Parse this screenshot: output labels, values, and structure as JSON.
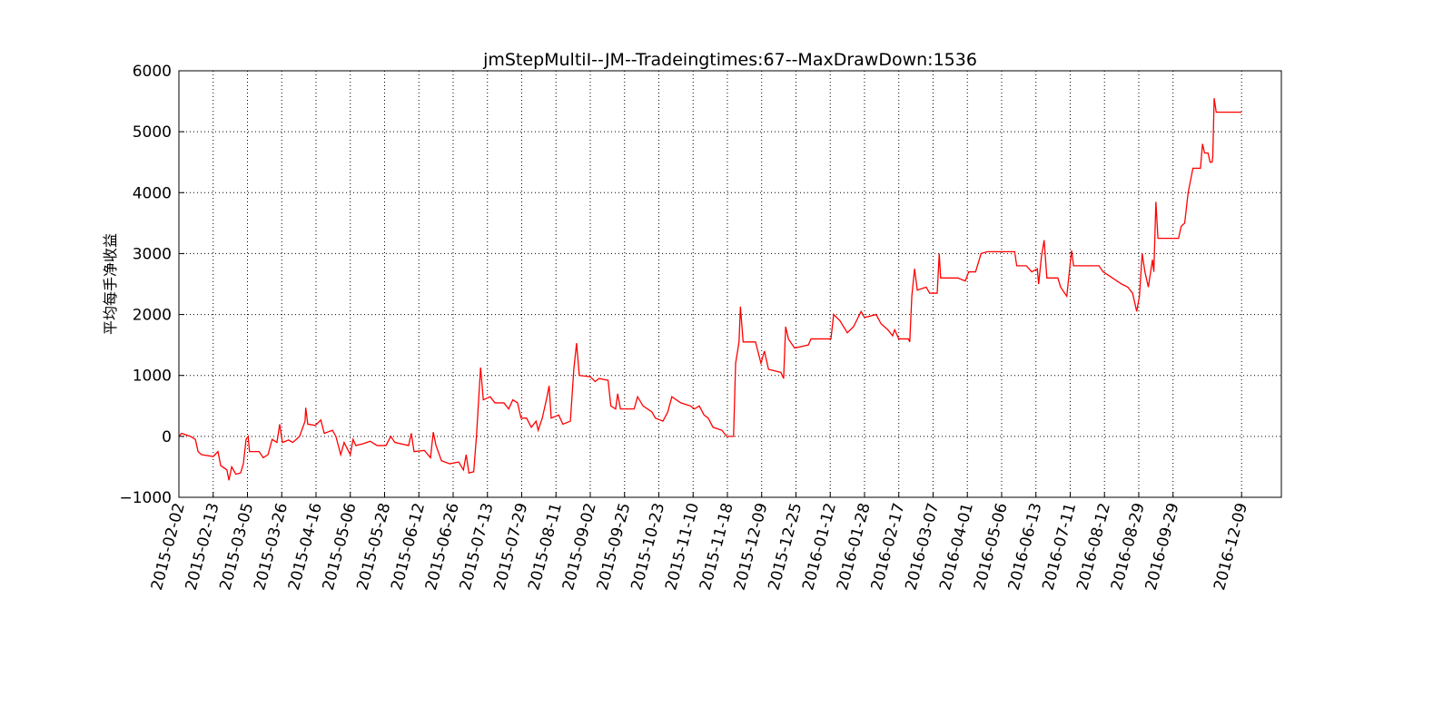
{
  "chart_data": {
    "type": "line",
    "title": "jmStepMultiI--JM--Tradeingtimes:67--MaxDrawDown:1536",
    "y_label": "平均每手净收益",
    "grid": true,
    "xlim": [
      0,
      1608
    ],
    "ylim": [
      -1000,
      6000
    ],
    "yticks": [
      {
        "value": -1000,
        "label": "−1000"
      },
      0,
      1000,
      2000,
      3000,
      4000,
      5000,
      6000
    ],
    "xticks": [
      {
        "value": 0,
        "label": "2015-02-02"
      },
      {
        "value": 50,
        "label": "2015-02-13"
      },
      {
        "value": 100,
        "label": "2015-03-05"
      },
      {
        "value": 150,
        "label": "2015-03-26"
      },
      {
        "value": 200,
        "label": "2015-04-16"
      },
      {
        "value": 250,
        "label": "2015-05-06"
      },
      {
        "value": 300,
        "label": "2015-05-28"
      },
      {
        "value": 350,
        "label": "2015-06-12"
      },
      {
        "value": 400,
        "label": "2015-06-26"
      },
      {
        "value": 450,
        "label": "2015-07-13"
      },
      {
        "value": 500,
        "label": "2015-07-29"
      },
      {
        "value": 550,
        "label": "2015-08-11"
      },
      {
        "value": 600,
        "label": "2015-09-02"
      },
      {
        "value": 650,
        "label": "2015-09-25"
      },
      {
        "value": 700,
        "label": "2015-10-23"
      },
      {
        "value": 750,
        "label": "2015-11-10"
      },
      {
        "value": 800,
        "label": "2015-11-18"
      },
      {
        "value": 850,
        "label": "2015-12-09"
      },
      {
        "value": 900,
        "label": "2015-12-25"
      },
      {
        "value": 950,
        "label": "2016-01-12"
      },
      {
        "value": 1000,
        "label": "2016-01-28"
      },
      {
        "value": 1050,
        "label": "2016-02-17"
      },
      {
        "value": 1100,
        "label": "2016-03-07"
      },
      {
        "value": 1150,
        "label": "2016-04-01"
      },
      {
        "value": 1200,
        "label": "2016-05-06"
      },
      {
        "value": 1250,
        "label": "2016-06-13"
      },
      {
        "value": 1300,
        "label": "2016-07-11"
      },
      {
        "value": 1350,
        "label": "2016-08-12"
      },
      {
        "value": 1400,
        "label": "2016-08-29"
      },
      {
        "value": 1450,
        "label": "2016-09-29"
      },
      {
        "value": 1550,
        "label": "2016-12-09"
      }
    ],
    "color": "#ff0000",
    "x": [
      0,
      4,
      17,
      24,
      28,
      33,
      50,
      57,
      61,
      70,
      73,
      77,
      83,
      90,
      94,
      98,
      101,
      103,
      117,
      123,
      130,
      136,
      143,
      147,
      151,
      160,
      166,
      176,
      184,
      185,
      188,
      199,
      207,
      212,
      224,
      229,
      236,
      241,
      250,
      254,
      258,
      269,
      279,
      289,
      302,
      309,
      315,
      335,
      339,
      343,
      358,
      367,
      371,
      375,
      383,
      395,
      408,
      415,
      419,
      423,
      430,
      434,
      440,
      444,
      454,
      461,
      474,
      481,
      487,
      494,
      499,
      507,
      514,
      521,
      524,
      530,
      536,
      540,
      543,
      554,
      560,
      571,
      576,
      580,
      584,
      600,
      607,
      613,
      626,
      630,
      637,
      640,
      644,
      664,
      669,
      677,
      690,
      695,
      706,
      713,
      719,
      732,
      746,
      752,
      759,
      766,
      772,
      779,
      792,
      799,
      809,
      812,
      817,
      819,
      823,
      841,
      849,
      854,
      860,
      878,
      882,
      885,
      889,
      898,
      918,
      922,
      938,
      951,
      955,
      964,
      975,
      984,
      995,
      1000,
      1017,
      1024,
      1034,
      1041,
      1044,
      1050,
      1064,
      1066,
      1069,
      1073,
      1077,
      1090,
      1095,
      1106,
      1109,
      1111,
      1136,
      1147,
      1152,
      1162,
      1170,
      1179,
      1219,
      1222,
      1236,
      1244,
      1252,
      1254,
      1258,
      1262,
      1266,
      1282,
      1286,
      1295,
      1302,
      1305,
      1342,
      1348,
      1355,
      1375,
      1384,
      1391,
      1397,
      1401,
      1405,
      1409,
      1414,
      1420,
      1422,
      1425,
      1428,
      1458,
      1462,
      1467,
      1472,
      1479,
      1490,
      1493,
      1496,
      1501,
      1504,
      1507,
      1508,
      1510,
      1513,
      1550
    ],
    "values": [
      0,
      50,
      0,
      -50,
      -250,
      -300,
      -330,
      -250,
      -480,
      -550,
      -720,
      -500,
      -620,
      -600,
      -450,
      -50,
      0,
      -250,
      -250,
      -350,
      -300,
      -50,
      -100,
      200,
      -100,
      -60,
      -100,
      0,
      250,
      470,
      200,
      180,
      270,
      50,
      100,
      0,
      -300,
      -100,
      -300,
      -50,
      -150,
      -120,
      -80,
      -150,
      -150,
      0,
      -100,
      -150,
      50,
      -250,
      -230,
      -350,
      70,
      -150,
      -400,
      -450,
      -420,
      -550,
      -300,
      -600,
      -580,
      0,
      1130,
      600,
      650,
      550,
      550,
      450,
      600,
      550,
      300,
      300,
      150,
      250,
      100,
      300,
      600,
      830,
      300,
      350,
      200,
      250,
      1100,
      1530,
      1000,
      980,
      900,
      950,
      920,
      500,
      450,
      700,
      450,
      450,
      650,
      500,
      400,
      300,
      250,
      400,
      650,
      550,
      500,
      450,
      500,
      350,
      300,
      150,
      100,
      0,
      0,
      1200,
      1550,
      2130,
      1550,
      1550,
      1200,
      1400,
      1100,
      1050,
      950,
      1800,
      1600,
      1450,
      1500,
      1600,
      1600,
      1600,
      2000,
      1900,
      1700,
      1800,
      2050,
      1950,
      2000,
      1850,
      1750,
      1650,
      1750,
      1600,
      1600,
      1550,
      2300,
      2750,
      2400,
      2450,
      2350,
      2350,
      3000,
      2600,
      2600,
      2550,
      2700,
      2700,
      3000,
      3030,
      3030,
      2800,
      2800,
      2700,
      2750,
      2500,
      2950,
      3220,
      2600,
      2600,
      2450,
      2300,
      3050,
      2800,
      2800,
      2700,
      2650,
      2500,
      2450,
      2350,
      2050,
      2300,
      3000,
      2700,
      2450,
      2900,
      2700,
      3850,
      3250,
      3250,
      3450,
      3500,
      4000,
      4400,
      4400,
      4800,
      4650,
      4650,
      4500,
      4500,
      4600,
      5550,
      5320,
      5320
    ]
  }
}
